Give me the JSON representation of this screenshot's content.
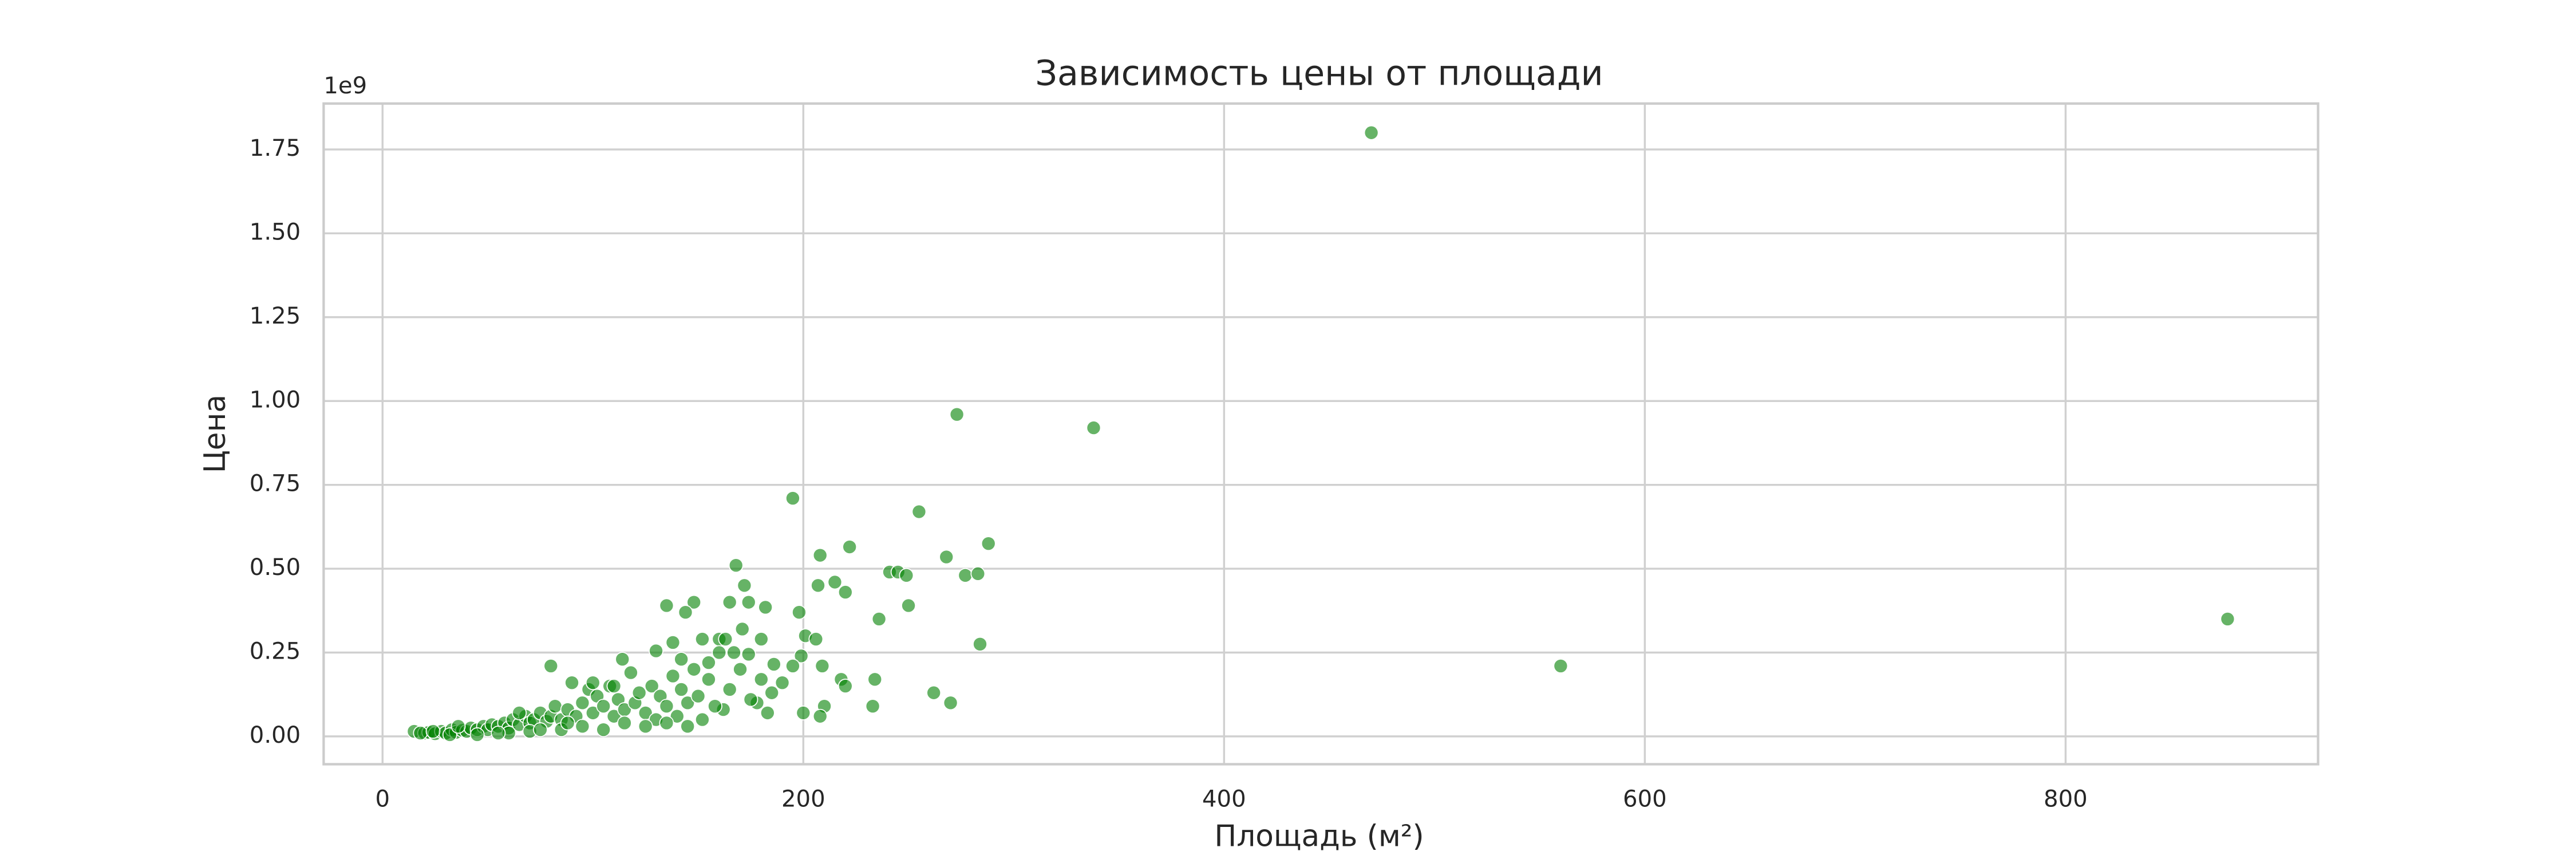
{
  "chart_data": {
    "type": "scatter",
    "title": "Зависимость цены от площади",
    "xlabel": "Площадь (м²)",
    "ylabel": "Цена",
    "y_offset_label": "1e9",
    "color": "green",
    "grid": true,
    "xlim": [
      -28,
      920
    ],
    "ylim": [
      -0.083,
      1.887
    ],
    "xticks": [
      0,
      200,
      400,
      600,
      800
    ],
    "yticks": [
      {
        "value": 0,
        "label": "0.00"
      },
      {
        "value": 0.25,
        "label": "0.25"
      },
      {
        "value": 0.5,
        "label": "0.50"
      },
      {
        "value": 0.75,
        "label": "0.75"
      },
      {
        "value": 1,
        "label": "1.00"
      },
      {
        "value": 1.25,
        "label": "1.25"
      },
      {
        "value": 1.5,
        "label": "1.50"
      },
      {
        "value": 1.75,
        "label": "1.75"
      }
    ],
    "x": [
      470,
      560,
      877,
      338,
      273,
      195,
      255,
      288,
      222,
      268,
      208,
      168,
      241,
      245,
      249,
      277,
      283,
      172,
      207,
      215,
      220,
      148,
      135,
      174,
      165,
      144,
      182,
      198,
      250,
      236,
      171,
      160,
      152,
      163,
      180,
      201,
      206,
      284,
      138,
      130,
      80,
      114,
      174,
      167,
      199,
      186,
      209,
      195,
      142,
      155,
      218,
      220,
      234,
      262,
      270,
      233,
      210,
      200,
      208,
      183,
      178,
      162,
      15,
      20,
      22,
      25,
      28,
      30,
      33,
      35,
      38,
      40,
      42,
      45,
      48,
      50,
      52,
      55,
      58,
      60,
      62,
      65,
      68,
      70,
      72,
      75,
      78,
      80,
      82,
      85,
      88,
      90,
      92,
      95,
      98,
      100,
      102,
      105,
      108,
      110,
      112,
      115,
      118,
      120,
      122,
      125,
      128,
      130,
      132,
      135,
      138,
      140,
      142,
      145,
      148,
      150,
      152,
      155,
      158,
      160,
      165,
      170,
      175,
      180,
      185,
      190,
      60,
      70,
      85,
      95,
      105,
      115,
      125,
      135,
      145,
      45,
      55,
      32,
      18,
      24,
      36,
      65,
      75,
      88,
      100,
      110
    ],
    "values": [
      1.8,
      0.21,
      0.35,
      0.92,
      0.96,
      0.71,
      0.67,
      0.575,
      0.565,
      0.535,
      0.54,
      0.51,
      0.49,
      0.49,
      0.48,
      0.48,
      0.485,
      0.45,
      0.45,
      0.46,
      0.43,
      0.4,
      0.39,
      0.4,
      0.4,
      0.37,
      0.385,
      0.37,
      0.39,
      0.35,
      0.32,
      0.29,
      0.29,
      0.29,
      0.29,
      0.3,
      0.29,
      0.275,
      0.28,
      0.255,
      0.21,
      0.23,
      0.245,
      0.25,
      0.24,
      0.215,
      0.21,
      0.21,
      0.23,
      0.22,
      0.17,
      0.15,
      0.17,
      0.13,
      0.1,
      0.09,
      0.09,
      0.07,
      0.06,
      0.07,
      0.1,
      0.08,
      0.015,
      0.01,
      0.012,
      0.008,
      0.015,
      0.01,
      0.02,
      0.012,
      0.018,
      0.015,
      0.025,
      0.02,
      0.03,
      0.02,
      0.035,
      0.03,
      0.04,
      0.025,
      0.05,
      0.035,
      0.06,
      0.04,
      0.05,
      0.07,
      0.045,
      0.06,
      0.09,
      0.05,
      0.08,
      0.16,
      0.06,
      0.1,
      0.14,
      0.07,
      0.12,
      0.09,
      0.15,
      0.06,
      0.11,
      0.08,
      0.19,
      0.1,
      0.13,
      0.07,
      0.15,
      0.05,
      0.12,
      0.09,
      0.18,
      0.06,
      0.14,
      0.1,
      0.2,
      0.12,
      0.05,
      0.17,
      0.09,
      0.25,
      0.14,
      0.2,
      0.11,
      0.17,
      0.13,
      0.16,
      0.01,
      0.015,
      0.02,
      0.03,
      0.02,
      0.04,
      0.03,
      0.04,
      0.03,
      0.005,
      0.01,
      0.005,
      0.01,
      0.015,
      0.03,
      0.07,
      0.02,
      0.04,
      0.16,
      0.15
    ]
  }
}
